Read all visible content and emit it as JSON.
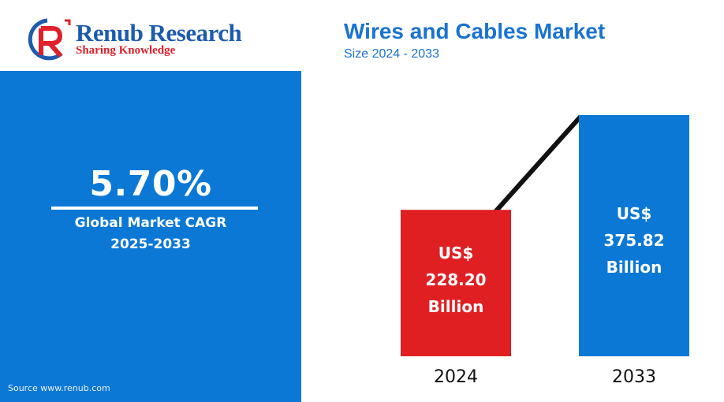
{
  "brand": {
    "name": "Renub Research",
    "tagline": "Sharing Knowledge",
    "colors": {
      "blue": "#1e5bb0",
      "red": "#e0202a"
    },
    "icon": "renub-r-logo-icon"
  },
  "kpi": {
    "value": "5.70%",
    "label_line1": "Global Market CAGR",
    "label_line2": "2025-2033",
    "panel_color": "#0b78d6"
  },
  "source": "Source  www.renub.com",
  "chart_data": {
    "type": "bar",
    "title": "Wires and Cables Market",
    "subtitle": "Size 2024 - 2033",
    "categories": [
      "2024",
      "2033"
    ],
    "values": [
      228.2,
      375.82
    ],
    "unit_prefix": "US$",
    "unit_suffix": "Billion",
    "data_labels": [
      [
        "US$",
        "228.20",
        "Billion"
      ],
      [
        "US$",
        "375.82",
        "Billion"
      ]
    ],
    "colors": [
      "#e01f23",
      "#0b78d6"
    ],
    "trend_line": true,
    "xlabel": "",
    "ylabel": "",
    "grid": false
  }
}
